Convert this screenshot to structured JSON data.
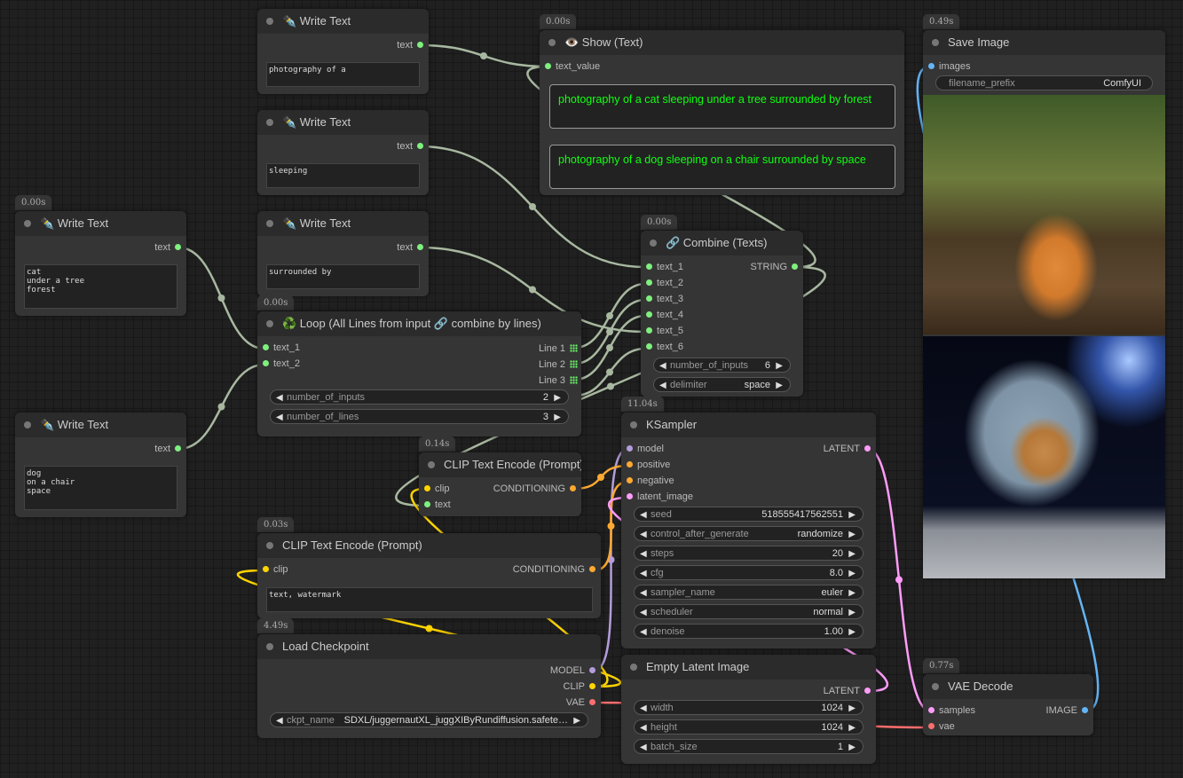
{
  "colors": {
    "string": "#7ef07e",
    "model": "#b39ddb",
    "clip": "#ffd500",
    "conditioning": "#ffa931",
    "latent": "#ff9cf9",
    "vae": "#ff6e6e",
    "image": "#64b5f6"
  },
  "nodes": [
    {
      "id": "wt1",
      "title": "✒️ Write Text",
      "outputs": [
        {
          "label": "text",
          "type": "string"
        }
      ],
      "textarea": "photography of a"
    },
    {
      "id": "wt2",
      "title": "✒️ Write Text",
      "outputs": [
        {
          "label": "text",
          "type": "string"
        }
      ],
      "textarea": "sleeping"
    },
    {
      "id": "wt3",
      "title": "✒️ Write Text",
      "outputs": [
        {
          "label": "text",
          "type": "string"
        }
      ],
      "textarea": "surrounded by"
    },
    {
      "id": "wt4",
      "title": "✒️ Write Text",
      "timing": "0.00s",
      "outputs": [
        {
          "label": "text",
          "type": "string"
        }
      ],
      "textarea": "cat\nunder a tree\nforest"
    },
    {
      "id": "wt5",
      "title": "✒️ Write Text",
      "outputs": [
        {
          "label": "text",
          "type": "string"
        }
      ],
      "textarea": "dog\non a chair\nspace"
    },
    {
      "id": "show",
      "title": "👁️ Show (Text)",
      "timing": "0.00s",
      "inputs": [
        {
          "label": "text_value",
          "type": "string"
        }
      ],
      "displays": [
        "photography of a cat sleeping  under a tree surrounded by forest",
        "photography of a dog sleeping  on a chair surrounded by space"
      ]
    },
    {
      "id": "save",
      "title": "Save Image",
      "timing": "0.49s",
      "inputs": [
        {
          "label": "images",
          "type": "image"
        }
      ],
      "widgets": [
        {
          "label": "filename_prefix",
          "value": "ComfyUI"
        }
      ]
    },
    {
      "id": "combine",
      "title": "🔗 Combine (Texts)",
      "timing": "0.00s",
      "inputs": [
        {
          "label": "text_1",
          "type": "string"
        },
        {
          "label": "text_2",
          "type": "string"
        },
        {
          "label": "text_3",
          "type": "string"
        },
        {
          "label": "text_4",
          "type": "string"
        },
        {
          "label": "text_5",
          "type": "string"
        },
        {
          "label": "text_6",
          "type": "string"
        }
      ],
      "outputs": [
        {
          "label": "STRING",
          "type": "string"
        }
      ],
      "widgets": [
        {
          "label": "number_of_inputs",
          "value": "6"
        },
        {
          "label": "delimiter",
          "value": "space"
        }
      ]
    },
    {
      "id": "loop",
      "title": "♻️ Loop (All Lines from input 🔗 combine by lines)",
      "timing": "0.00s",
      "inputs": [
        {
          "label": "text_1",
          "type": "string"
        },
        {
          "label": "text_2",
          "type": "string"
        }
      ],
      "outputs": [
        {
          "label": "Line 1",
          "type": "list"
        },
        {
          "label": "Line 2",
          "type": "list"
        },
        {
          "label": "Line 3",
          "type": "list"
        }
      ],
      "widgets": [
        {
          "label": "number_of_inputs",
          "value": "2"
        },
        {
          "label": "number_of_lines",
          "value": "3"
        }
      ]
    },
    {
      "id": "ksampler",
      "title": "KSampler",
      "timing": "11.04s",
      "inputs": [
        {
          "label": "model",
          "type": "model"
        },
        {
          "label": "positive",
          "type": "conditioning"
        },
        {
          "label": "negative",
          "type": "conditioning"
        },
        {
          "label": "latent_image",
          "type": "latent"
        }
      ],
      "outputs": [
        {
          "label": "LATENT",
          "type": "latent"
        }
      ],
      "widgets": [
        {
          "label": "seed",
          "value": "518555417562551"
        },
        {
          "label": "control_after_generate",
          "value": "randomize"
        },
        {
          "label": "steps",
          "value": "20"
        },
        {
          "label": "cfg",
          "value": "8.0"
        },
        {
          "label": "sampler_name",
          "value": "euler"
        },
        {
          "label": "scheduler",
          "value": "normal"
        },
        {
          "label": "denoise",
          "value": "1.00"
        }
      ]
    },
    {
      "id": "clip1",
      "title": "CLIP Text Encode (Prompt)",
      "timing": "0.14s",
      "inputs": [
        {
          "label": "clip",
          "type": "clip"
        },
        {
          "label": "text",
          "type": "string"
        }
      ],
      "outputs": [
        {
          "label": "CONDITIONING",
          "type": "conditioning"
        }
      ]
    },
    {
      "id": "clip2",
      "title": "CLIP Text Encode (Prompt)",
      "timing": "0.03s",
      "inputs": [
        {
          "label": "clip",
          "type": "clip"
        }
      ],
      "outputs": [
        {
          "label": "CONDITIONING",
          "type": "conditioning"
        }
      ],
      "textarea": "text, watermark"
    },
    {
      "id": "ckpt",
      "title": "Load Checkpoint",
      "timing": "4.49s",
      "outputs": [
        {
          "label": "MODEL",
          "type": "model"
        },
        {
          "label": "CLIP",
          "type": "clip"
        },
        {
          "label": "VAE",
          "type": "vae"
        }
      ],
      "widgets": [
        {
          "label": "ckpt_name",
          "value": "SDXL/juggernautXL_juggXIByRundiffusion.safete…"
        }
      ]
    },
    {
      "id": "latent",
      "title": "Empty Latent Image",
      "outputs": [
        {
          "label": "LATENT",
          "type": "latent"
        }
      ],
      "widgets": [
        {
          "label": "width",
          "value": "1024"
        },
        {
          "label": "height",
          "value": "1024"
        },
        {
          "label": "batch_size",
          "value": "1"
        }
      ]
    },
    {
      "id": "vae",
      "title": "VAE Decode",
      "timing": "0.77s",
      "inputs": [
        {
          "label": "samples",
          "type": "latent"
        },
        {
          "label": "vae",
          "type": "vae"
        }
      ],
      "outputs": [
        {
          "label": "IMAGE",
          "type": "image"
        }
      ]
    }
  ]
}
